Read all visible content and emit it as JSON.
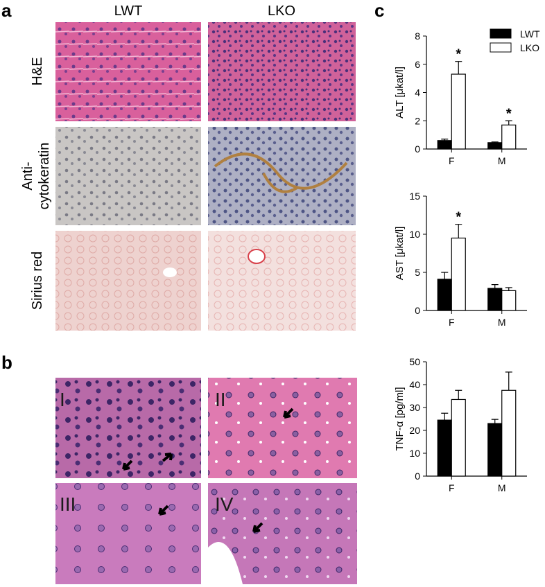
{
  "panel_labels": [
    "a",
    "b",
    "c"
  ],
  "panel_a": {
    "columns": [
      "LWT",
      "LKO"
    ],
    "rows": [
      [
        "H&E"
      ],
      [
        "Anti-",
        "cytokeratin"
      ],
      [
        "Sirius red"
      ]
    ]
  },
  "panel_b": {
    "labels": [
      "I",
      "II",
      "III",
      "IV"
    ]
  },
  "chart_data": [
    {
      "type": "bar",
      "ylabel": "ALT [μkat/l]",
      "categories": [
        "F",
        "M"
      ],
      "ylim": [
        0,
        8
      ],
      "yticks": [
        0,
        2,
        4,
        6,
        8
      ],
      "legend": "upper right",
      "series": [
        {
          "name": "LWT",
          "color": "#000000",
          "values": [
            0.6,
            0.45
          ],
          "errors": [
            0.1,
            0.05
          ]
        },
        {
          "name": "LKO",
          "color": "#ffffff",
          "values": [
            5.3,
            1.7
          ],
          "errors": [
            0.9,
            0.3
          ],
          "significance": [
            "*",
            "*"
          ]
        }
      ]
    },
    {
      "type": "bar",
      "ylabel": "AST [μkat/l]",
      "categories": [
        "F",
        "M"
      ],
      "ylim": [
        0,
        15
      ],
      "yticks": [
        0,
        5,
        10,
        15
      ],
      "series": [
        {
          "color": "#000000",
          "values": [
            4.1,
            2.9
          ],
          "errors": [
            0.9,
            0.5
          ]
        },
        {
          "color": "#ffffff",
          "values": [
            9.5,
            2.6
          ],
          "errors": [
            1.8,
            0.4
          ],
          "significance": [
            "*",
            null
          ]
        }
      ]
    },
    {
      "type": "bar",
      "ylabel": "TNF-α [pg/ml]",
      "categories": [
        "F",
        "M"
      ],
      "ylim": [
        0,
        50
      ],
      "yticks": [
        0,
        10,
        20,
        30,
        40,
        50
      ],
      "series": [
        {
          "color": "#000000",
          "values": [
            24.5,
            23
          ],
          "errors": [
            3,
            1.8
          ]
        },
        {
          "color": "#ffffff",
          "values": [
            33.5,
            37.5
          ],
          "errors": [
            4,
            8
          ]
        }
      ]
    }
  ]
}
